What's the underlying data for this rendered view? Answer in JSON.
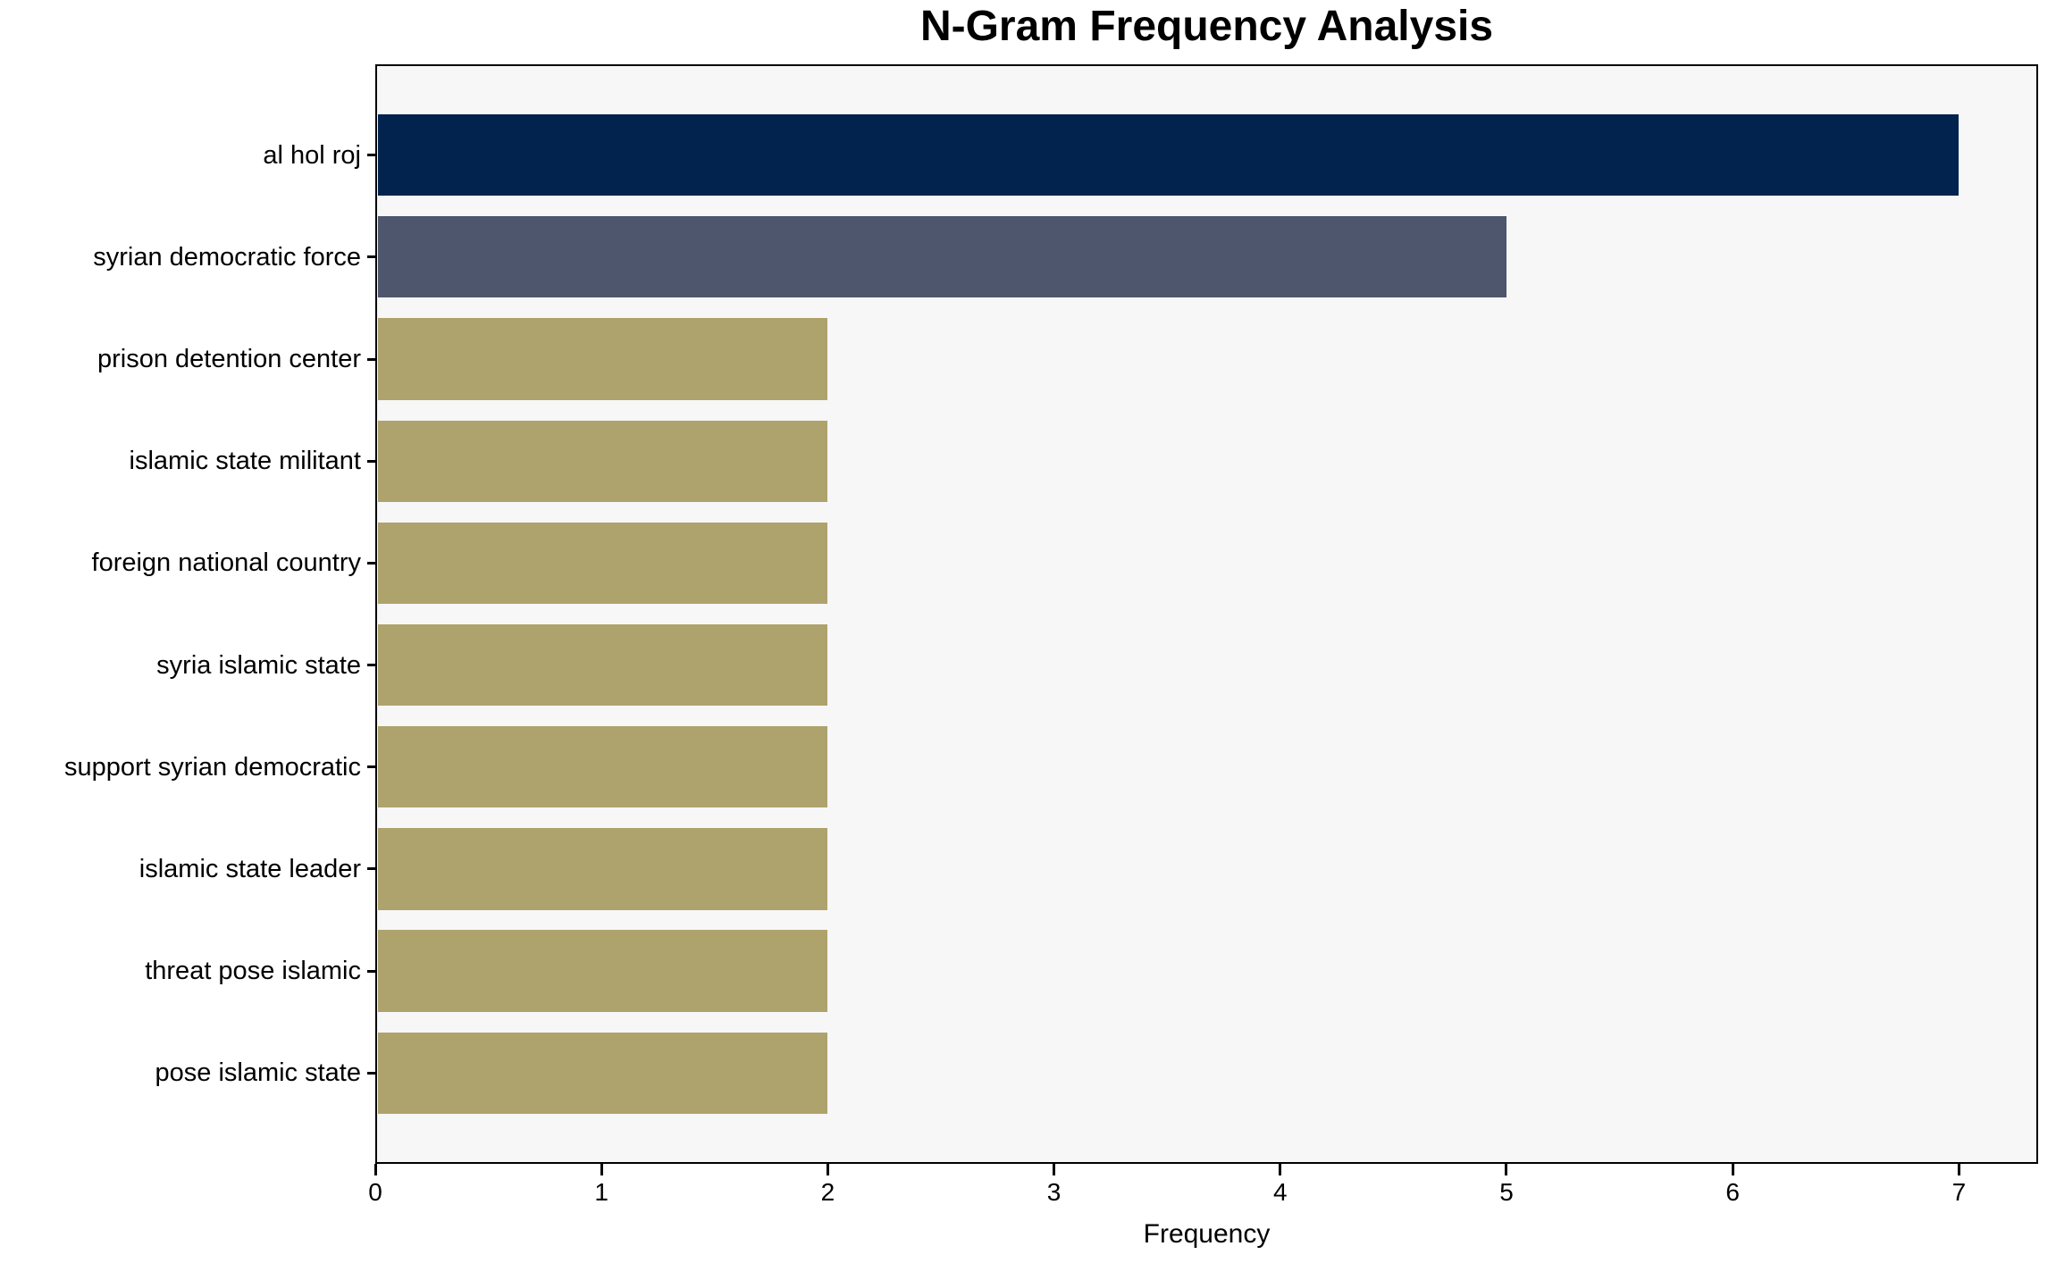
{
  "chart_data": {
    "type": "bar",
    "orientation": "horizontal",
    "title": "N-Gram Frequency Analysis",
    "xlabel": "Frequency",
    "ylabel": "",
    "categories": [
      "al hol roj",
      "syrian democratic force",
      "prison detention center",
      "islamic state militant",
      "foreign national country",
      "syria islamic state",
      "support syrian democratic",
      "islamic state leader",
      "threat pose islamic",
      "pose islamic state"
    ],
    "values": [
      7,
      5,
      2,
      2,
      2,
      2,
      2,
      2,
      2,
      2
    ],
    "bar_colors": [
      "#01234d",
      "#4d566c",
      "#aea36c",
      "#aea36c",
      "#aea36c",
      "#aea36c",
      "#aea36c",
      "#aea36c",
      "#aea36c",
      "#aea36c"
    ],
    "xticks": [
      "0",
      "1",
      "2",
      "3",
      "4",
      "5",
      "6",
      "7"
    ],
    "xlim": [
      0,
      7.35
    ],
    "grid": false,
    "legend": "none",
    "colors": {
      "plot_background": "#f7f7f8",
      "figure_background": "#ffffff",
      "spine": "#000000",
      "text": "#000000"
    }
  }
}
